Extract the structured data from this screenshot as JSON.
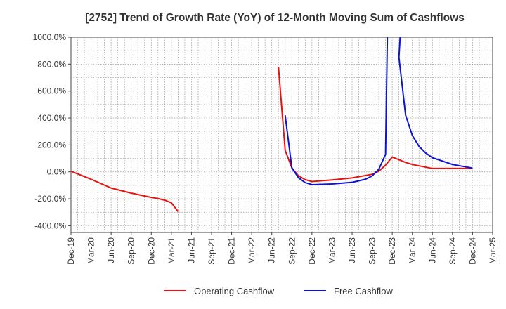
{
  "chart_data": {
    "type": "line",
    "title": "[2752]  Trend of Growth Rate (YoY) of 12-Month Moving Sum of Cashflows",
    "xlabel": "",
    "ylabel": "",
    "ylim": [
      -450,
      1000
    ],
    "grid": true,
    "legend_position": "bottom",
    "x_ticks": [
      "Dec-19",
      "Mar-20",
      "Jun-20",
      "Sep-20",
      "Dec-20",
      "Mar-21",
      "Jun-21",
      "Sep-21",
      "Dec-21",
      "Mar-22",
      "Jun-22",
      "Sep-22",
      "Dec-22",
      "Mar-23",
      "Jun-23",
      "Sep-23",
      "Dec-23",
      "Mar-24",
      "Jun-24",
      "Sep-24",
      "Dec-24",
      "Mar-25"
    ],
    "y_ticks": [
      1000,
      800,
      600,
      400,
      200,
      0,
      -200,
      -400
    ],
    "y_tick_labels": [
      "1000.0%",
      "800.0%",
      "600.0%",
      "400.0%",
      "200.0%",
      "0.0%",
      "-200.0%",
      "-400.0%"
    ],
    "series": [
      {
        "name": "Operating Cashflow",
        "color": "#e8130f",
        "points": [
          [
            "2019-12",
            5
          ],
          [
            "2020-03",
            -55
          ],
          [
            "2020-06",
            -120
          ],
          [
            "2020-09",
            -158
          ],
          [
            "2020-12",
            -190
          ],
          [
            "2021-01",
            -198
          ],
          [
            "2021-02",
            -210
          ],
          [
            "2021-03",
            -230
          ],
          [
            "2021-04",
            -295
          ],
          [
            "2022-07",
            780
          ],
          [
            "2022-08",
            160
          ],
          [
            "2022-09",
            30
          ],
          [
            "2022-10",
            -30
          ],
          [
            "2022-11",
            -58
          ],
          [
            "2022-12",
            -72
          ],
          [
            "2023-03",
            -60
          ],
          [
            "2023-06",
            -45
          ],
          [
            "2023-09",
            -18
          ],
          [
            "2023-10",
            5
          ],
          [
            "2023-11",
            50
          ],
          [
            "2023-12",
            110
          ],
          [
            "2024-01",
            90
          ],
          [
            "2024-02",
            70
          ],
          [
            "2024-03",
            55
          ],
          [
            "2024-06",
            25
          ],
          [
            "2024-09",
            25
          ],
          [
            "2024-12",
            25
          ]
        ]
      },
      {
        "name": "Free Cashflow",
        "color": "#0b14d6",
        "points": [
          [
            "2022-08",
            420
          ],
          [
            "2022-09",
            30
          ],
          [
            "2022-10",
            -45
          ],
          [
            "2022-11",
            -80
          ],
          [
            "2022-12",
            -95
          ],
          [
            "2023-03",
            -90
          ],
          [
            "2023-06",
            -78
          ],
          [
            "2023-08",
            -55
          ],
          [
            "2023-09",
            -30
          ],
          [
            "2023-10",
            20
          ],
          [
            "2023-11",
            130
          ],
          [
            "2023-11-10",
            1100
          ],
          [
            "2024-01-10",
            1100
          ],
          [
            "2024-01",
            850
          ],
          [
            "2024-02",
            420
          ],
          [
            "2024-03",
            270
          ],
          [
            "2024-04",
            190
          ],
          [
            "2024-05",
            140
          ],
          [
            "2024-06",
            105
          ],
          [
            "2024-09",
            55
          ],
          [
            "2024-12",
            28
          ]
        ]
      }
    ]
  }
}
